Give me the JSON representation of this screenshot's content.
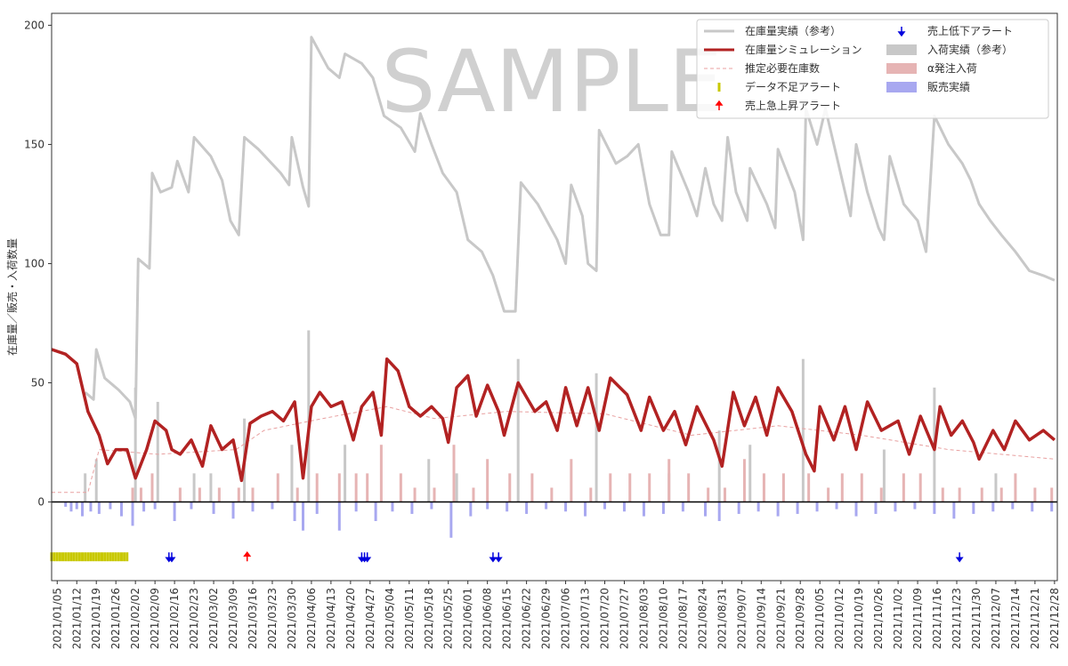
{
  "chart_data": {
    "type": "line",
    "ylabel": "在庫量／販売・入荷数量",
    "watermark": "SAMPLE",
    "xlim": [
      "2021/01/03",
      "2021/12/29"
    ],
    "xticks": [
      "2021/01/05",
      "2021/01/12",
      "2021/01/19",
      "2021/01/26",
      "2021/02/02",
      "2021/02/09",
      "2021/02/16",
      "2021/02/23",
      "2021/03/02",
      "2021/03/09",
      "2021/03/16",
      "2021/03/23",
      "2021/03/30",
      "2021/04/06",
      "2021/04/13",
      "2021/04/20",
      "2021/04/27",
      "2021/05/04",
      "2021/05/11",
      "2021/05/18",
      "2021/05/25",
      "2021/06/01",
      "2021/06/08",
      "2021/06/15",
      "2021/06/22",
      "2021/06/29",
      "2021/07/06",
      "2021/07/13",
      "2021/07/20",
      "2021/07/27",
      "2021/08/03",
      "2021/08/10",
      "2021/08/17",
      "2021/08/24",
      "2021/08/31",
      "2021/09/07",
      "2021/09/14",
      "2021/09/21",
      "2021/09/28",
      "2021/10/05",
      "2021/10/12",
      "2021/10/19",
      "2021/10/26",
      "2021/11/02",
      "2021/11/09",
      "2021/11/16",
      "2021/11/23",
      "2021/11/30",
      "2021/12/07",
      "2021/12/14",
      "2021/12/21",
      "2021/12/28"
    ],
    "ylim": [
      -33,
      205
    ],
    "yticks": [
      0,
      50,
      100,
      150,
      200
    ],
    "legend": "upper right",
    "series": [
      {
        "name": "在庫量実績（参考）",
        "kind": "line",
        "color": "#c8c8c8",
        "x": [
          "2021/01/15",
          "2021/01/18",
          "2021/01/19",
          "2021/01/22",
          "2021/01/27",
          "2021/01/31",
          "2021/02/02",
          "2021/02/03",
          "2021/02/07",
          "2021/02/08",
          "2021/02/11",
          "2021/02/15",
          "2021/02/17",
          "2021/02/21",
          "2021/02/23",
          "2021/03/01",
          "2021/03/05",
          "2021/03/08",
          "2021/03/11",
          "2021/03/13",
          "2021/03/18",
          "2021/03/26",
          "2021/03/29",
          "2021/03/30",
          "2021/04/03",
          "2021/04/05",
          "2021/04/06",
          "2021/04/12",
          "2021/04/16",
          "2021/04/18",
          "2021/04/24",
          "2021/04/28",
          "2021/05/02",
          "2021/05/08",
          "2021/05/13",
          "2021/05/15",
          "2021/05/19",
          "2021/05/23",
          "2021/05/28",
          "2021/06/01",
          "2021/06/06",
          "2021/06/10",
          "2021/06/14",
          "2021/06/18",
          "2021/06/20",
          "2021/06/26",
          "2021/07/03",
          "2021/07/06",
          "2021/07/08",
          "2021/07/12",
          "2021/07/14",
          "2021/07/17",
          "2021/07/18",
          "2021/07/24",
          "2021/07/28",
          "2021/08/01",
          "2021/08/05",
          "2021/08/09",
          "2021/08/12",
          "2021/08/13",
          "2021/08/19",
          "2021/08/22",
          "2021/08/25",
          "2021/08/28",
          "2021/08/31",
          "2021/09/02",
          "2021/09/05",
          "2021/09/09",
          "2021/09/10",
          "2021/09/16",
          "2021/09/19",
          "2021/09/20",
          "2021/09/26",
          "2021/09/29",
          "2021/09/30",
          "2021/10/04",
          "2021/10/07",
          "2021/10/12",
          "2021/10/16",
          "2021/10/18",
          "2021/10/22",
          "2021/10/26",
          "2021/10/28",
          "2021/10/30",
          "2021/11/04",
          "2021/11/09",
          "2021/11/12",
          "2021/11/15",
          "2021/11/20",
          "2021/11/25",
          "2021/11/28",
          "2021/12/01",
          "2021/12/05",
          "2021/12/09",
          "2021/12/14",
          "2021/12/19",
          "2021/12/24",
          "2021/12/28"
        ],
        "values": [
          46,
          43,
          64,
          52,
          47,
          42,
          35,
          102,
          98,
          138,
          130,
          132,
          143,
          130,
          153,
          145,
          135,
          118,
          112,
          153,
          148,
          138,
          133,
          153,
          132,
          124,
          195,
          182,
          178,
          188,
          184,
          178,
          162,
          157,
          147,
          163,
          150,
          138,
          130,
          110,
          105,
          95,
          80,
          80,
          134,
          125,
          110,
          100,
          133,
          120,
          100,
          97,
          156,
          142,
          145,
          150,
          125,
          112,
          112,
          147,
          130,
          120,
          140,
          125,
          118,
          153,
          130,
          118,
          140,
          125,
          115,
          148,
          130,
          110,
          165,
          150,
          165,
          140,
          120,
          150,
          130,
          115,
          110,
          145,
          125,
          118,
          105,
          162,
          150,
          142,
          135,
          125,
          118,
          112,
          105,
          97,
          95,
          93
        ]
      },
      {
        "name": "在庫量シミュレーション",
        "kind": "line",
        "color": "#b22222",
        "x": [
          "2021/01/03",
          "2021/01/08",
          "2021/01/12",
          "2021/01/16",
          "2021/01/20",
          "2021/01/23",
          "2021/01/26",
          "2021/01/30",
          "2021/02/02",
          "2021/02/06",
          "2021/02/09",
          "2021/02/13",
          "2021/02/15",
          "2021/02/18",
          "2021/02/22",
          "2021/02/26",
          "2021/03/01",
          "2021/03/05",
          "2021/03/09",
          "2021/03/12",
          "2021/03/15",
          "2021/03/19",
          "2021/03/23",
          "2021/03/27",
          "2021/03/31",
          "2021/04/03",
          "2021/04/06",
          "2021/04/09",
          "2021/04/13",
          "2021/04/17",
          "2021/04/21",
          "2021/04/24",
          "2021/04/28",
          "2021/05/01",
          "2021/05/03",
          "2021/05/07",
          "2021/05/11",
          "2021/05/15",
          "2021/05/19",
          "2021/05/23",
          "2021/05/25",
          "2021/05/28",
          "2021/06/01",
          "2021/06/04",
          "2021/06/08",
          "2021/06/12",
          "2021/06/14",
          "2021/06/19",
          "2021/06/25",
          "2021/06/29",
          "2021/07/03",
          "2021/07/06",
          "2021/07/10",
          "2021/07/14",
          "2021/07/18",
          "2021/07/22",
          "2021/07/28",
          "2021/08/02",
          "2021/08/05",
          "2021/08/10",
          "2021/08/14",
          "2021/08/18",
          "2021/08/22",
          "2021/08/28",
          "2021/08/31",
          "2021/09/04",
          "2021/09/08",
          "2021/09/12",
          "2021/09/16",
          "2021/09/20",
          "2021/09/25",
          "2021/09/30",
          "2021/10/03",
          "2021/10/05",
          "2021/10/10",
          "2021/10/14",
          "2021/10/18",
          "2021/10/22",
          "2021/10/27",
          "2021/11/02",
          "2021/11/06",
          "2021/11/10",
          "2021/11/15",
          "2021/11/17",
          "2021/11/21",
          "2021/11/25",
          "2021/11/29",
          "2021/12/01",
          "2021/12/06",
          "2021/12/10",
          "2021/12/14",
          "2021/12/19",
          "2021/12/24",
          "2021/12/28"
        ],
        "values": [
          64,
          62,
          58,
          38,
          28,
          16,
          22,
          22,
          10,
          22,
          34,
          30,
          22,
          20,
          26,
          15,
          32,
          22,
          26,
          9,
          33,
          36,
          38,
          34,
          42,
          10,
          40,
          46,
          40,
          42,
          26,
          40,
          46,
          28,
          60,
          55,
          40,
          36,
          40,
          35,
          25,
          48,
          53,
          36,
          49,
          38,
          28,
          50,
          38,
          42,
          30,
          48,
          32,
          48,
          30,
          52,
          45,
          30,
          44,
          30,
          38,
          24,
          40,
          26,
          15,
          46,
          32,
          44,
          28,
          48,
          38,
          20,
          13,
          40,
          26,
          40,
          22,
          42,
          30,
          34,
          20,
          36,
          22,
          40,
          28,
          34,
          25,
          18,
          30,
          22,
          34,
          26,
          30,
          26
        ]
      },
      {
        "name": "推定必要在庫数",
        "kind": "line",
        "linestyle": "dashed",
        "color": "#e8a0a0",
        "x": [
          "2021/01/03",
          "2021/01/16",
          "2021/01/20",
          "2021/02/10",
          "2021/03/10",
          "2021/03/20",
          "2021/04/10",
          "2021/05/03",
          "2021/05/20",
          "2021/06/15",
          "2021/07/20",
          "2021/08/20",
          "2021/09/20",
          "2021/10/20",
          "2021/11/20",
          "2021/12/28"
        ],
        "values": [
          4,
          4,
          22,
          20,
          22,
          30,
          35,
          40,
          35,
          38,
          37,
          28,
          32,
          28,
          22,
          18
        ]
      },
      {
        "name": "データ不足アラート",
        "kind": "marker",
        "marker": "tick",
        "color": "#c8c800",
        "x": [
          "2021/01/03",
          "2021/01/04",
          "2021/01/05",
          "2021/01/06",
          "2021/01/07",
          "2021/01/08",
          "2021/01/09",
          "2021/01/10",
          "2021/01/11",
          "2021/01/12",
          "2021/01/13",
          "2021/01/14",
          "2021/01/15",
          "2021/01/16",
          "2021/01/17",
          "2021/01/18",
          "2021/01/19",
          "2021/01/20",
          "2021/01/21",
          "2021/01/22",
          "2021/01/23",
          "2021/01/24",
          "2021/01/25",
          "2021/01/26",
          "2021/01/27",
          "2021/01/28",
          "2021/01/29",
          "2021/01/30"
        ],
        "values": [
          -23,
          -23,
          -23,
          -23,
          -23,
          -23,
          -23,
          -23,
          -23,
          -23,
          -23,
          -23,
          -23,
          -23,
          -23,
          -23,
          -23,
          -23,
          -23,
          -23,
          -23,
          -23,
          -23,
          -23,
          -23,
          -23,
          -23,
          -23
        ]
      },
      {
        "name": "売上急上昇アラート",
        "kind": "marker",
        "marker": "arrow-up",
        "color": "#ff0000",
        "x": [
          "2021/03/14"
        ],
        "values": [
          -23
        ]
      },
      {
        "name": "売上低下アラート",
        "kind": "marker",
        "marker": "arrow-down",
        "color": "#0000dd",
        "x": [
          "2021/02/14",
          "2021/02/15",
          "2021/04/24",
          "2021/04/25",
          "2021/04/26",
          "2021/06/10",
          "2021/06/12",
          "2021/11/24"
        ],
        "values": [
          -23,
          -23,
          -23,
          -23,
          -23,
          -23,
          -23,
          -23
        ]
      },
      {
        "name": "入荷実績（参考）",
        "kind": "bar",
        "color": "#c8c8c8",
        "x": [
          "2021/01/15",
          "2021/01/19",
          "2021/02/02",
          "2021/02/10",
          "2021/02/23",
          "2021/03/01",
          "2021/03/13",
          "2021/03/30",
          "2021/04/05",
          "2021/04/18",
          "2021/05/18",
          "2021/05/28",
          "2021/06/19",
          "2021/07/17",
          "2021/08/12",
          "2021/08/30",
          "2021/09/10",
          "2021/09/29",
          "2021/10/28",
          "2021/11/15",
          "2021/12/07"
        ],
        "values": [
          12,
          18,
          48,
          42,
          12,
          12,
          35,
          24,
          72,
          24,
          18,
          12,
          60,
          54,
          12,
          30,
          24,
          60,
          22,
          48,
          12
        ]
      },
      {
        "name": "α発注入荷",
        "kind": "bar",
        "color": "#e6b4b4",
        "x": [
          "2021/02/01",
          "2021/02/04",
          "2021/02/08",
          "2021/02/18",
          "2021/02/25",
          "2021/03/04",
          "2021/03/11",
          "2021/03/16",
          "2021/03/25",
          "2021/04/01",
          "2021/04/08",
          "2021/04/16",
          "2021/04/22",
          "2021/04/26",
          "2021/05/01",
          "2021/05/08",
          "2021/05/13",
          "2021/05/20",
          "2021/05/27",
          "2021/06/03",
          "2021/06/08",
          "2021/06/16",
          "2021/06/24",
          "2021/07/01",
          "2021/07/08",
          "2021/07/15",
          "2021/07/22",
          "2021/07/29",
          "2021/08/05",
          "2021/08/12",
          "2021/08/19",
          "2021/08/26",
          "2021/09/01",
          "2021/09/08",
          "2021/09/15",
          "2021/09/22",
          "2021/10/01",
          "2021/10/08",
          "2021/10/13",
          "2021/10/20",
          "2021/10/27",
          "2021/11/04",
          "2021/11/10",
          "2021/11/18",
          "2021/11/24",
          "2021/12/02",
          "2021/12/09",
          "2021/12/14",
          "2021/12/21",
          "2021/12/27"
        ],
        "values": [
          6,
          6,
          12,
          6,
          6,
          6,
          6,
          6,
          12,
          6,
          12,
          12,
          12,
          12,
          24,
          12,
          6,
          6,
          24,
          6,
          18,
          12,
          12,
          6,
          18,
          6,
          12,
          12,
          12,
          18,
          12,
          6,
          6,
          18,
          12,
          12,
          12,
          6,
          12,
          12,
          6,
          12,
          12,
          6,
          6,
          6,
          6,
          12,
          6,
          6
        ]
      },
      {
        "name": "販売実績",
        "kind": "bar",
        "color": "#a8a8f0",
        "x": [
          "2021/01/08",
          "2021/01/10",
          "2021/01/12",
          "2021/01/14",
          "2021/01/17",
          "2021/01/20",
          "2021/01/24",
          "2021/01/28",
          "2021/02/01",
          "2021/02/05",
          "2021/02/09",
          "2021/02/16",
          "2021/02/22",
          "2021/03/02",
          "2021/03/09",
          "2021/03/16",
          "2021/03/23",
          "2021/03/31",
          "2021/04/03",
          "2021/04/08",
          "2021/04/16",
          "2021/04/22",
          "2021/04/29",
          "2021/05/05",
          "2021/05/12",
          "2021/05/19",
          "2021/05/26",
          "2021/06/02",
          "2021/06/08",
          "2021/06/15",
          "2021/06/22",
          "2021/06/29",
          "2021/07/06",
          "2021/07/13",
          "2021/07/20",
          "2021/07/27",
          "2021/08/03",
          "2021/08/10",
          "2021/08/17",
          "2021/08/25",
          "2021/08/30",
          "2021/09/06",
          "2021/09/13",
          "2021/09/20",
          "2021/09/27",
          "2021/10/04",
          "2021/10/11",
          "2021/10/18",
          "2021/10/25",
          "2021/11/01",
          "2021/11/08",
          "2021/11/15",
          "2021/11/22",
          "2021/11/29",
          "2021/12/06",
          "2021/12/13",
          "2021/12/20",
          "2021/12/27"
        ],
        "values": [
          -2,
          -4,
          -3,
          -6,
          -4,
          -5,
          -3,
          -6,
          -10,
          -4,
          -3,
          -8,
          -3,
          -5,
          -7,
          -4,
          -3,
          -8,
          -12,
          -5,
          -12,
          -4,
          -8,
          -4,
          -5,
          -3,
          -15,
          -6,
          -3,
          -4,
          -5,
          -3,
          -4,
          -6,
          -3,
          -4,
          -6,
          -5,
          -4,
          -6,
          -8,
          -5,
          -4,
          -6,
          -5,
          -4,
          -3,
          -6,
          -5,
          -4,
          -3,
          -5,
          -7,
          -5,
          -4,
          -3,
          -4,
          -4
        ]
      }
    ]
  }
}
